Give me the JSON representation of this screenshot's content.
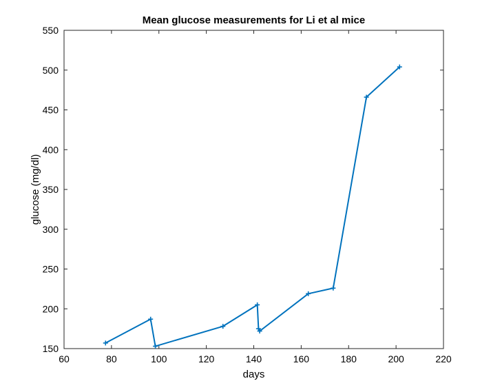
{
  "chart_data": {
    "type": "line",
    "title": "Mean glucose measurements for Li et al mice",
    "xlabel": "days",
    "ylabel": "glucose (mg/dl)",
    "xlim": [
      60,
      220
    ],
    "ylim": [
      150,
      550
    ],
    "xticks": [
      60,
      80,
      100,
      120,
      140,
      160,
      180,
      200,
      220
    ],
    "yticks": [
      150,
      200,
      250,
      300,
      350,
      400,
      450,
      500,
      550
    ],
    "grid": false,
    "marker": "plus",
    "color": "#0072BD",
    "series": [
      {
        "x": [
          77.5,
          96.5,
          98.5,
          127,
          141.5,
          142,
          142.5,
          163,
          173.5,
          187.5,
          201.5
        ],
        "y": [
          157,
          187,
          153,
          178,
          205,
          175,
          172,
          219,
          226,
          466,
          504
        ]
      }
    ]
  }
}
